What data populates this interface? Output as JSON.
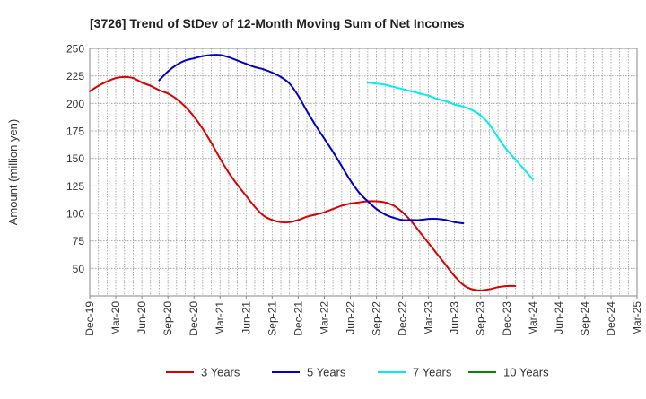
{
  "chart_data": {
    "type": "line",
    "title": "[3726]  Trend of StDev of 12-Month Moving Sum of Net Incomes",
    "ylabel": "Amount (million yen)",
    "xlabel": "",
    "ylim": [
      25,
      250
    ],
    "yticks": [
      50,
      75,
      100,
      125,
      150,
      175,
      200,
      225,
      250
    ],
    "x_tick_labels": [
      "Dec-19",
      "Mar-20",
      "Jun-20",
      "Sep-20",
      "Dec-20",
      "Mar-21",
      "Jun-21",
      "Sep-21",
      "Dec-21",
      "Mar-22",
      "Jun-22",
      "Sep-22",
      "Dec-22",
      "Mar-23",
      "Jun-23",
      "Sep-23",
      "Dec-23",
      "Mar-24",
      "Jun-24",
      "Sep-24",
      "Dec-24",
      "Mar-25"
    ],
    "x_period": "monthly",
    "grid": true,
    "legend_position": "bottom",
    "series": [
      {
        "name": "3 Years",
        "color": "#dd0000",
        "start": "Dec-19",
        "values": [
          211,
          216,
          220,
          223,
          224,
          223,
          219,
          216,
          212,
          209,
          204,
          197,
          188,
          177,
          164,
          150,
          137,
          126,
          116,
          106,
          98,
          94,
          92,
          92,
          94,
          97,
          99,
          101,
          104,
          107,
          109,
          110,
          111,
          111,
          110,
          107,
          101,
          93,
          83,
          73,
          63,
          53,
          43,
          35,
          31,
          30,
          31,
          33,
          34,
          34
        ]
      },
      {
        "name": "5 Years",
        "color": "#0000cc",
        "start": "Aug-20",
        "values": [
          221,
          229,
          235,
          239,
          241,
          243,
          244,
          244,
          242,
          239,
          236,
          233,
          231,
          228,
          224,
          218,
          207,
          193,
          180,
          168,
          156,
          143,
          130,
          119,
          111,
          104,
          99,
          96,
          94,
          94,
          94,
          95,
          95,
          94,
          92,
          91
        ]
      },
      {
        "name": "7 Years",
        "color": "#00eeee",
        "start": "Aug-22",
        "values": [
          219,
          218,
          217,
          215,
          213,
          211,
          209,
          207,
          204,
          202,
          199,
          197,
          194,
          189,
          181,
          169,
          158,
          149,
          140,
          131
        ]
      },
      {
        "name": "10 Years",
        "color": "#008800",
        "start": "Dec-24",
        "values": []
      }
    ]
  }
}
